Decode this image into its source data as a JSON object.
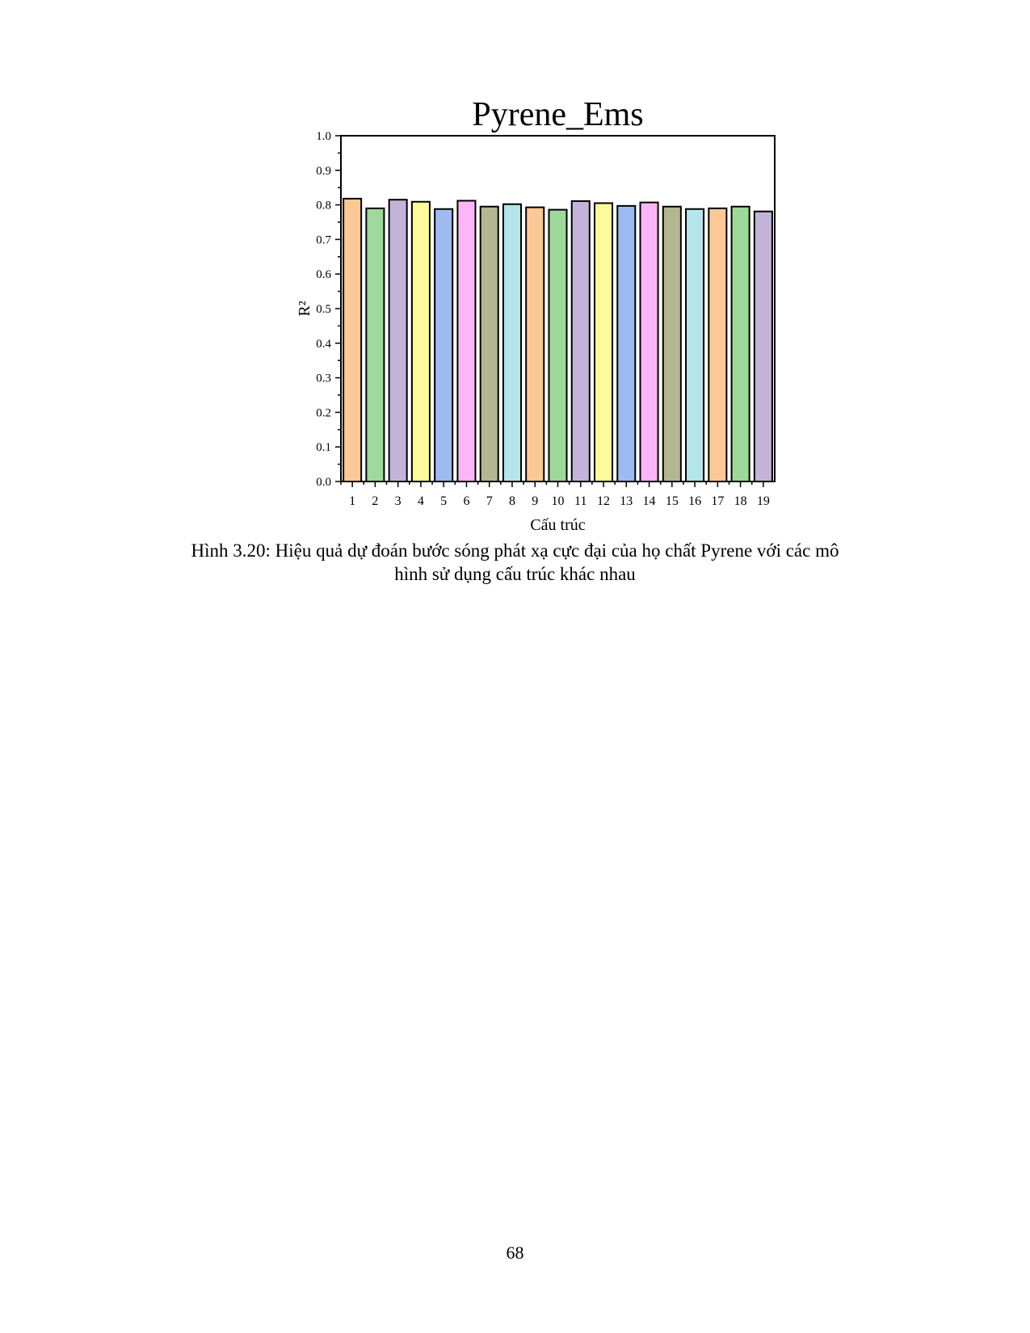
{
  "chart_data": {
    "type": "bar",
    "title": "Pyrene_Ems",
    "xlabel": "Cấu trúc",
    "ylabel": "R²",
    "ylim": [
      0,
      1.0
    ],
    "yticks": [
      "0.0",
      "0.1",
      "0.2",
      "0.3",
      "0.4",
      "0.5",
      "0.6",
      "0.7",
      "0.8",
      "0.9",
      "1.0"
    ],
    "categories": [
      "1",
      "2",
      "3",
      "4",
      "5",
      "6",
      "7",
      "8",
      "9",
      "10",
      "11",
      "12",
      "13",
      "14",
      "15",
      "16",
      "17",
      "18",
      "19"
    ],
    "values": [
      0.818,
      0.79,
      0.815,
      0.809,
      0.788,
      0.812,
      0.795,
      0.802,
      0.793,
      0.786,
      0.811,
      0.805,
      0.797,
      0.807,
      0.795,
      0.788,
      0.79,
      0.795,
      0.781
    ],
    "colors": [
      "#FCC996",
      "#9FD89B",
      "#C3B3D9",
      "#FDFA9B",
      "#9DBBF0",
      "#FCB6F8",
      "#B4B690",
      "#B5E4EB",
      "#FCC996",
      "#9FD89B",
      "#C3B3D9",
      "#FDFA9B",
      "#9DBBF0",
      "#FCB6F8",
      "#B4B690",
      "#B5E4EB",
      "#FCC996",
      "#9FD89B",
      "#C3B3D9"
    ],
    "grid": false
  },
  "caption": {
    "line1": "Hình 3.20: Hiệu quả dự đoán bước sóng phát xạ cực đại của họ chất Pyrene với các mô",
    "line2": "hình sử dụng cấu trúc khác nhau"
  },
  "page_number": "68"
}
